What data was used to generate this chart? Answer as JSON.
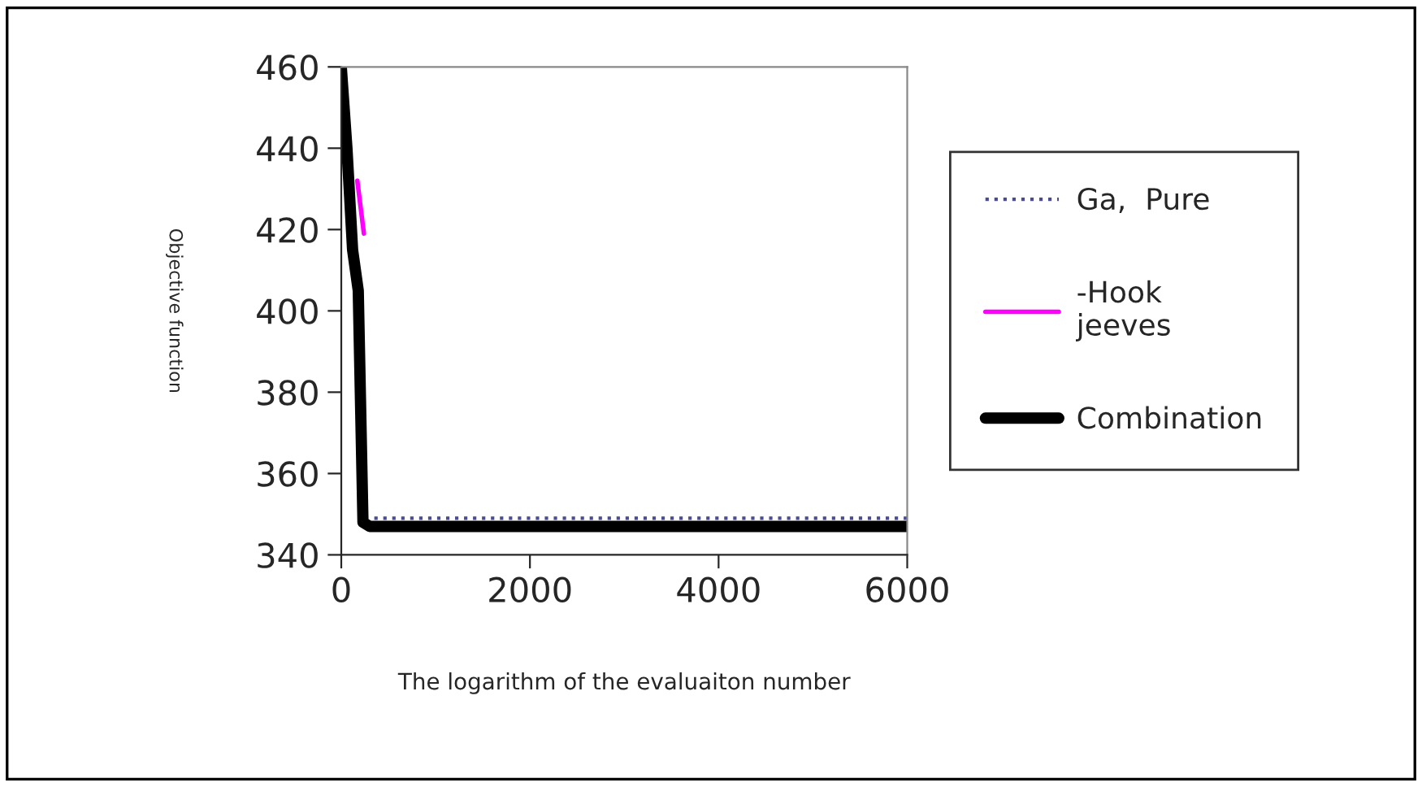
{
  "chart_data": {
    "type": "line",
    "xlabel": "The logarithm of the evaluaiton number",
    "ylabel": "Objective function",
    "series": [
      {
        "name": "Ga,  Pure",
        "color": "#4b4b8f",
        "line_style": "dotted",
        "x": [
          350,
          6000
        ],
        "values": [
          349,
          349
        ]
      },
      {
        "name": "-Hook\njeeves",
        "color": "#ff00ff",
        "line_style": "solid",
        "x": [
          170,
          240
        ],
        "values": [
          432,
          419
        ]
      },
      {
        "name": "Combination",
        "color": "#000000",
        "line_style": "solid",
        "x": [
          0,
          60,
          120,
          180,
          230,
          300,
          6000
        ],
        "values": [
          460,
          440,
          415,
          405,
          348,
          347,
          347
        ]
      }
    ],
    "xlim": [
      0,
      6000
    ],
    "xticks": [
      0,
      2000,
      4000,
      6000
    ],
    "ylim": [
      340,
      460
    ],
    "yticks": [
      340,
      360,
      380,
      400,
      420,
      440,
      460
    ],
    "grid": false,
    "legend": "right"
  }
}
